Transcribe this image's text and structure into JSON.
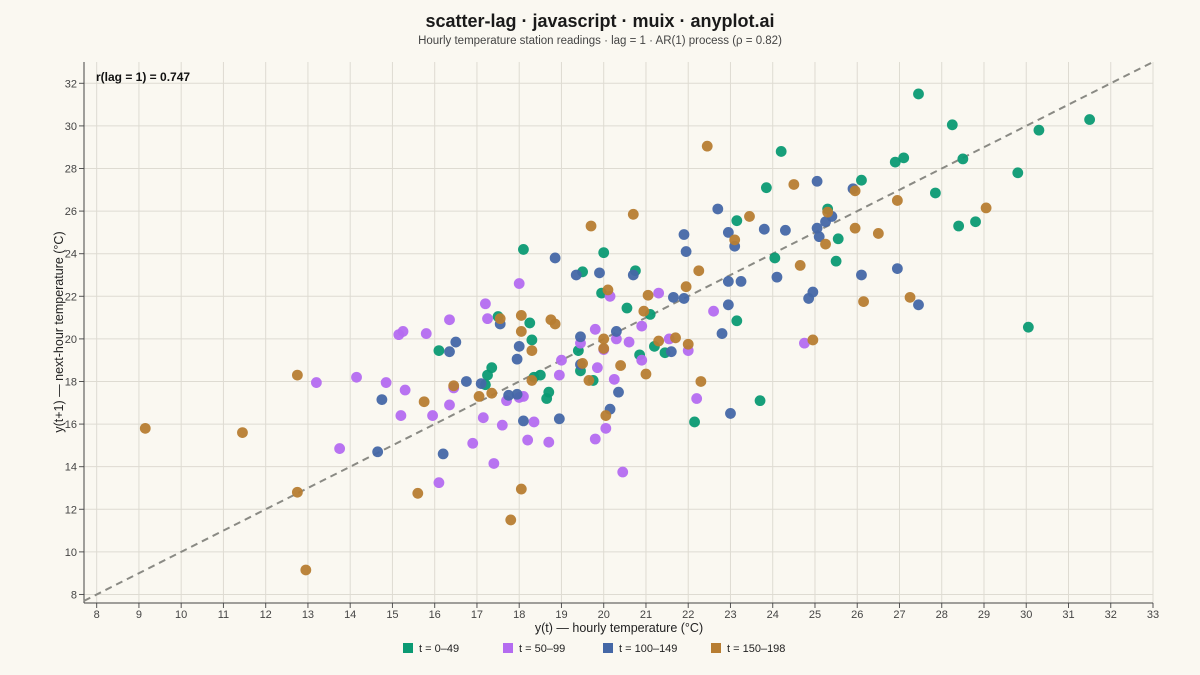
{
  "chart_data": {
    "type": "scatter",
    "title": "scatter-lag · javascript · muix · anyplot.ai",
    "subtitle": "Hourly temperature station readings · lag = 1 · AR(1) process (ρ = 0.82)",
    "xlabel": "y(t) — hourly temperature (°C)",
    "ylabel": "y(t+1) — next-hour temperature (°C)",
    "annotation": "r(lag = 1) = 0.747",
    "xlim": [
      7.7,
      33
    ],
    "ylim": [
      7.6,
      33
    ],
    "xticks": [
      8,
      9,
      10,
      11,
      12,
      13,
      14,
      15,
      16,
      17,
      18,
      19,
      20,
      21,
      22,
      23,
      24,
      25,
      26,
      27,
      28,
      29,
      30,
      31,
      32,
      33
    ],
    "yticks": [
      8,
      10,
      12,
      14,
      16,
      18,
      20,
      22,
      24,
      26,
      28,
      30,
      32
    ],
    "grid": true,
    "reference_line": "y = x",
    "legend_position": "bottom-center",
    "series": [
      {
        "name": "t = 0–49",
        "color": "#0b9a73",
        "points": [
          [
            27.45,
            31.5
          ],
          [
            28.25,
            30.05
          ],
          [
            30.3,
            29.8
          ],
          [
            31.5,
            30.3
          ],
          [
            24.2,
            28.8
          ],
          [
            26.9,
            28.3
          ],
          [
            27.1,
            28.5
          ],
          [
            28.5,
            28.45
          ],
          [
            29.8,
            27.8
          ],
          [
            23.85,
            27.1
          ],
          [
            26.1,
            27.45
          ],
          [
            27.85,
            26.85
          ],
          [
            25.3,
            26.1
          ],
          [
            23.15,
            25.55
          ],
          [
            28.4,
            25.3
          ],
          [
            28.8,
            25.5
          ],
          [
            25.55,
            24.7
          ],
          [
            24.05,
            23.8
          ],
          [
            25.5,
            23.65
          ],
          [
            18.1,
            24.2
          ],
          [
            20.0,
            24.05
          ],
          [
            20.75,
            23.2
          ],
          [
            19.5,
            23.15
          ],
          [
            19.95,
            22.15
          ],
          [
            20.55,
            21.45
          ],
          [
            21.1,
            21.15
          ],
          [
            23.15,
            20.85
          ],
          [
            30.05,
            20.55
          ],
          [
            17.5,
            21.05
          ],
          [
            18.25,
            20.75
          ],
          [
            18.3,
            19.95
          ],
          [
            21.2,
            19.65
          ],
          [
            21.45,
            19.35
          ],
          [
            20.85,
            19.25
          ],
          [
            16.1,
            19.45
          ],
          [
            17.35,
            18.65
          ],
          [
            17.25,
            18.3
          ],
          [
            17.2,
            17.85
          ],
          [
            18.35,
            18.2
          ],
          [
            18.5,
            18.3
          ],
          [
            18.7,
            17.5
          ],
          [
            18.65,
            17.2
          ],
          [
            19.45,
            18.5
          ],
          [
            19.75,
            18.05
          ],
          [
            19.4,
            19.45
          ],
          [
            23.7,
            17.1
          ],
          [
            22.15,
            16.1
          ]
        ]
      },
      {
        "name": "t = 50–99",
        "color": "#b46cf0",
        "points": [
          [
            15.25,
            20.35
          ],
          [
            15.15,
            20.2
          ],
          [
            15.8,
            20.25
          ],
          [
            16.35,
            20.9
          ],
          [
            17.2,
            21.65
          ],
          [
            17.25,
            20.95
          ],
          [
            18.0,
            22.6
          ],
          [
            20.15,
            22.0
          ],
          [
            21.3,
            22.15
          ],
          [
            13.2,
            17.95
          ],
          [
            14.15,
            18.2
          ],
          [
            14.85,
            17.95
          ],
          [
            15.3,
            17.6
          ],
          [
            15.2,
            16.4
          ],
          [
            15.95,
            16.4
          ],
          [
            16.35,
            16.9
          ],
          [
            16.45,
            17.7
          ],
          [
            17.15,
            16.3
          ],
          [
            17.6,
            15.95
          ],
          [
            16.9,
            15.1
          ],
          [
            13.75,
            14.85
          ],
          [
            17.4,
            14.15
          ],
          [
            16.1,
            13.25
          ],
          [
            18.2,
            15.25
          ],
          [
            18.35,
            16.1
          ],
          [
            18.7,
            15.15
          ],
          [
            17.7,
            17.1
          ],
          [
            18.0,
            17.25
          ],
          [
            18.1,
            17.3
          ],
          [
            18.95,
            18.3
          ],
          [
            19.0,
            19.0
          ],
          [
            19.45,
            19.8
          ],
          [
            19.8,
            20.45
          ],
          [
            20.3,
            20.0
          ],
          [
            20.6,
            19.85
          ],
          [
            20.0,
            19.5
          ],
          [
            19.85,
            18.65
          ],
          [
            20.25,
            18.1
          ],
          [
            20.9,
            19.0
          ],
          [
            20.9,
            20.6
          ],
          [
            21.55,
            20.0
          ],
          [
            22.0,
            19.45
          ],
          [
            22.6,
            21.3
          ],
          [
            22.2,
            17.2
          ],
          [
            19.8,
            15.3
          ],
          [
            20.05,
            15.8
          ],
          [
            20.45,
            13.75
          ],
          [
            24.75,
            19.8
          ]
        ]
      },
      {
        "name": "t = 100–149",
        "color": "#4467a6",
        "points": [
          [
            27.45,
            21.6
          ],
          [
            26.95,
            23.3
          ],
          [
            26.1,
            23.0
          ],
          [
            25.9,
            27.05
          ],
          [
            25.05,
            27.4
          ],
          [
            25.4,
            25.75
          ],
          [
            25.25,
            25.5
          ],
          [
            25.05,
            25.2
          ],
          [
            25.1,
            24.8
          ],
          [
            24.3,
            25.1
          ],
          [
            23.8,
            25.15
          ],
          [
            22.95,
            25.0
          ],
          [
            22.7,
            26.1
          ],
          [
            23.1,
            24.35
          ],
          [
            23.25,
            22.7
          ],
          [
            22.95,
            22.7
          ],
          [
            24.1,
            22.9
          ],
          [
            24.85,
            21.9
          ],
          [
            24.95,
            22.2
          ],
          [
            21.9,
            24.9
          ],
          [
            21.95,
            24.1
          ],
          [
            21.65,
            21.95
          ],
          [
            21.9,
            21.9
          ],
          [
            22.8,
            20.25
          ],
          [
            22.95,
            21.6
          ],
          [
            23.0,
            16.5
          ],
          [
            21.6,
            19.4
          ],
          [
            20.7,
            23.0
          ],
          [
            19.9,
            23.1
          ],
          [
            19.35,
            23.0
          ],
          [
            18.85,
            23.8
          ],
          [
            19.45,
            20.1
          ],
          [
            20.3,
            20.35
          ],
          [
            19.45,
            18.8
          ],
          [
            20.35,
            17.5
          ],
          [
            20.15,
            16.7
          ],
          [
            18.95,
            16.25
          ],
          [
            18.1,
            16.15
          ],
          [
            17.95,
            17.4
          ],
          [
            18.0,
            19.65
          ],
          [
            17.95,
            19.05
          ],
          [
            17.55,
            20.7
          ],
          [
            17.1,
            17.9
          ],
          [
            17.75,
            17.35
          ],
          [
            16.75,
            18.0
          ],
          [
            16.5,
            19.85
          ],
          [
            16.35,
            19.4
          ],
          [
            16.2,
            14.6
          ],
          [
            14.75,
            17.15
          ],
          [
            14.65,
            14.7
          ]
        ]
      },
      {
        "name": "t = 150–198",
        "color": "#b77d32",
        "points": [
          [
            22.45,
            29.05
          ],
          [
            24.5,
            27.25
          ],
          [
            25.95,
            26.95
          ],
          [
            26.95,
            26.5
          ],
          [
            29.05,
            26.15
          ],
          [
            23.45,
            25.75
          ],
          [
            20.7,
            25.85
          ],
          [
            19.7,
            25.3
          ],
          [
            25.3,
            25.95
          ],
          [
            25.95,
            25.2
          ],
          [
            25.25,
            24.45
          ],
          [
            26.5,
            24.95
          ],
          [
            24.65,
            23.45
          ],
          [
            23.1,
            24.65
          ],
          [
            22.25,
            23.2
          ],
          [
            21.95,
            22.45
          ],
          [
            21.05,
            22.05
          ],
          [
            20.1,
            22.3
          ],
          [
            26.15,
            21.75
          ],
          [
            27.25,
            21.95
          ],
          [
            20.95,
            21.3
          ],
          [
            18.05,
            21.1
          ],
          [
            18.85,
            20.7
          ],
          [
            18.75,
            20.9
          ],
          [
            18.05,
            20.35
          ],
          [
            17.55,
            20.95
          ],
          [
            20.0,
            20.0
          ],
          [
            21.3,
            19.9
          ],
          [
            21.7,
            20.05
          ],
          [
            22.0,
            19.75
          ],
          [
            24.95,
            19.95
          ],
          [
            20.0,
            19.55
          ],
          [
            18.3,
            19.45
          ],
          [
            19.5,
            18.85
          ],
          [
            20.4,
            18.75
          ],
          [
            19.65,
            18.05
          ],
          [
            21.0,
            18.35
          ],
          [
            22.3,
            18.0
          ],
          [
            18.3,
            18.05
          ],
          [
            17.35,
            17.45
          ],
          [
            17.05,
            17.3
          ],
          [
            16.45,
            17.8
          ],
          [
            15.75,
            17.05
          ],
          [
            20.05,
            16.4
          ],
          [
            12.75,
            18.3
          ],
          [
            9.15,
            15.8
          ],
          [
            11.45,
            15.6
          ],
          [
            12.75,
            12.8
          ],
          [
            15.6,
            12.75
          ],
          [
            18.05,
            12.95
          ],
          [
            17.8,
            11.5
          ],
          [
            12.95,
            9.15
          ]
        ]
      }
    ]
  }
}
